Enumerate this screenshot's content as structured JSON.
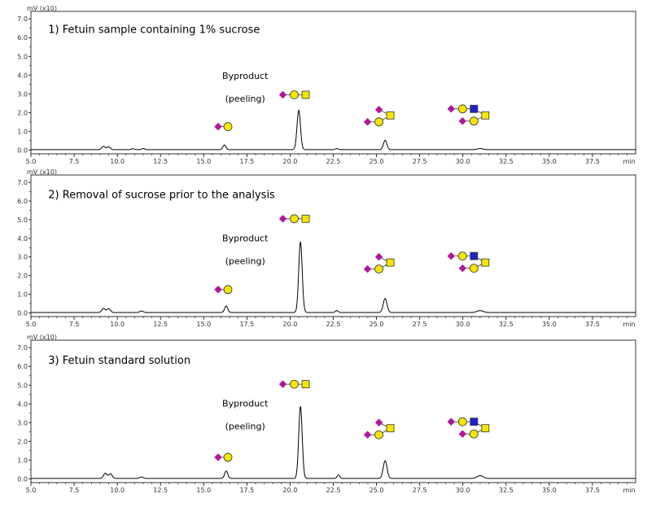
{
  "chart_data": [
    {
      "type": "line",
      "title": "1) Fetuin sample containing 1% sucrose",
      "ylabel": "mV (x10)",
      "xunit": "min",
      "xlim": [
        5.0,
        40.0
      ],
      "ylim": [
        -0.2,
        7.4
      ],
      "xticks": [
        "5.0",
        "7.5",
        "10.0",
        "12.5",
        "15.0",
        "17.5",
        "20.0",
        "22.5",
        "25.0",
        "27.5",
        "30.0",
        "32.5",
        "35.0",
        "37.5"
      ],
      "yticks": [
        "0.0",
        "1.0",
        "2.0",
        "3.0",
        "4.0",
        "5.0",
        "6.0",
        "7.0"
      ],
      "annotation": [
        "Byproduct",
        "(peeling)"
      ],
      "peaks": [
        {
          "x": 9.2,
          "y": 0.18,
          "w": 0.1
        },
        {
          "x": 9.5,
          "y": 0.15,
          "w": 0.1
        },
        {
          "x": 10.9,
          "y": 0.05,
          "w": 0.1
        },
        {
          "x": 11.5,
          "y": 0.06,
          "w": 0.1
        },
        {
          "x": 16.2,
          "y": 0.25,
          "w": 0.09
        },
        {
          "x": 20.5,
          "y": 2.1,
          "w": 0.1
        },
        {
          "x": 22.7,
          "y": 0.06,
          "w": 0.08
        },
        {
          "x": 25.5,
          "y": 0.5,
          "w": 0.1
        },
        {
          "x": 31.0,
          "y": 0.06,
          "w": 0.18
        }
      ],
      "glycans": [
        {
          "id": "byproduct",
          "x": 16.4,
          "y": 1.25
        },
        {
          "id": "lin",
          "x": 20.9,
          "y": 2.95
        },
        {
          "id": "br2",
          "x": 25.8,
          "y": 1.85
        },
        {
          "id": "br3",
          "x": 31.3,
          "y": 1.85
        }
      ],
      "title_pos": [
        6.0,
        6.25
      ],
      "anno_pos": [
        17.4,
        3.8
      ]
    },
    {
      "type": "line",
      "title": "2) Removal of sucrose prior to the analysis",
      "ylabel": "mV (x10)",
      "xunit": "min",
      "xlim": [
        5.0,
        40.0
      ],
      "ylim": [
        -0.2,
        7.4
      ],
      "xticks": [
        "5.0",
        "7.5",
        "10.0",
        "12.5",
        "15.0",
        "17.5",
        "20.0",
        "22.5",
        "25.0",
        "27.5",
        "30.0",
        "32.5",
        "35.0",
        "37.5"
      ],
      "yticks": [
        "0.0",
        "1.0",
        "2.0",
        "3.0",
        "4.0",
        "5.0",
        "6.0",
        "7.0"
      ],
      "annotation": [
        "Byproduct",
        "(peeling)"
      ],
      "peaks": [
        {
          "x": 9.2,
          "y": 0.22,
          "w": 0.1
        },
        {
          "x": 9.5,
          "y": 0.2,
          "w": 0.1
        },
        {
          "x": 11.4,
          "y": 0.08,
          "w": 0.1
        },
        {
          "x": 16.3,
          "y": 0.35,
          "w": 0.09
        },
        {
          "x": 20.6,
          "y": 3.8,
          "w": 0.1
        },
        {
          "x": 22.7,
          "y": 0.1,
          "w": 0.08
        },
        {
          "x": 25.5,
          "y": 0.75,
          "w": 0.11
        },
        {
          "x": 31.0,
          "y": 0.1,
          "w": 0.18
        }
      ],
      "glycans": [
        {
          "id": "byproduct",
          "x": 16.4,
          "y": 1.25
        },
        {
          "id": "lin",
          "x": 20.9,
          "y": 5.05
        },
        {
          "id": "br2",
          "x": 25.8,
          "y": 2.7
        },
        {
          "id": "br3",
          "x": 31.3,
          "y": 2.7
        }
      ],
      "title_pos": [
        6.0,
        6.15
      ],
      "anno_pos": [
        17.4,
        3.85
      ]
    },
    {
      "type": "line",
      "title": "3) Fetuin standard solution",
      "ylabel": "mV (x10)",
      "xunit": "min",
      "xlim": [
        5.0,
        40.0
      ],
      "ylim": [
        -0.2,
        7.4
      ],
      "xticks": [
        "5.0",
        "7.5",
        "10.0",
        "12.5",
        "15.0",
        "17.5",
        "20.0",
        "22.5",
        "25.0",
        "27.5",
        "30.0",
        "32.5",
        "35.0",
        "37.5"
      ],
      "yticks": [
        "0.0",
        "1.0",
        "2.0",
        "3.0",
        "4.0",
        "5.0",
        "6.0",
        "7.0"
      ],
      "annotation": [
        "Byproduct",
        "(peeling)"
      ],
      "peaks": [
        {
          "x": 9.3,
          "y": 0.28,
          "w": 0.1
        },
        {
          "x": 9.6,
          "y": 0.25,
          "w": 0.1
        },
        {
          "x": 11.4,
          "y": 0.08,
          "w": 0.1
        },
        {
          "x": 16.3,
          "y": 0.4,
          "w": 0.09
        },
        {
          "x": 20.6,
          "y": 3.85,
          "w": 0.1
        },
        {
          "x": 22.8,
          "y": 0.18,
          "w": 0.08
        },
        {
          "x": 25.5,
          "y": 0.95,
          "w": 0.11
        },
        {
          "x": 31.0,
          "y": 0.15,
          "w": 0.18
        }
      ],
      "glycans": [
        {
          "id": "byproduct",
          "x": 16.4,
          "y": 1.15
        },
        {
          "id": "lin",
          "x": 20.9,
          "y": 5.05
        },
        {
          "id": "br2",
          "x": 25.8,
          "y": 2.7
        },
        {
          "id": "br3",
          "x": 31.3,
          "y": 2.7
        }
      ],
      "title_pos": [
        6.0,
        6.15
      ],
      "anno_pos": [
        17.4,
        3.85
      ]
    }
  ],
  "colors": {
    "sialic_acid": "#b0189a",
    "galactose": "#f4e600",
    "hexnac": "#f4e600",
    "glcnac": "#1e22c8",
    "outline": "#333333",
    "trace": "#000000"
  }
}
